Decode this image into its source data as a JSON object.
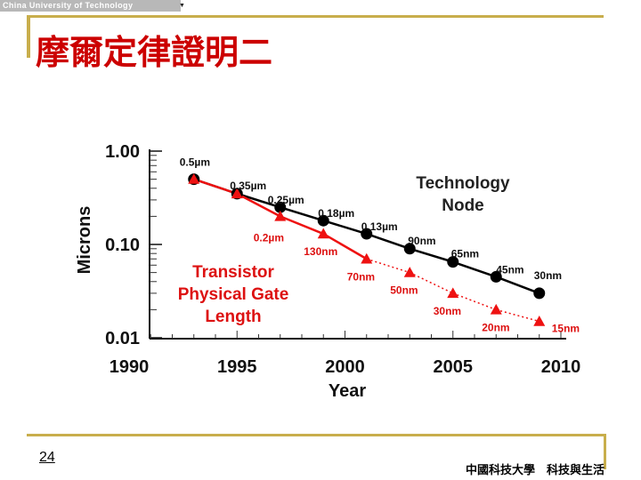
{
  "header": {
    "university": "China University of Technology",
    "title": "摩爾定律證明二"
  },
  "footer": {
    "page_number": "24",
    "org": "中國科技大學　科技與生活"
  },
  "colors": {
    "title": "#cc0000",
    "accent_gold": "#c8ae4c",
    "technology_node": "#000000",
    "gate_length": "#ee1111"
  },
  "chart_data": {
    "type": "line",
    "ylabel": "Microns",
    "xlabel": "Year",
    "yscale": "log",
    "ylim": [
      0.01,
      1.0
    ],
    "xlim": [
      1990,
      2010
    ],
    "x_ticks": [
      "1990",
      "1995",
      "2000",
      "2005",
      "2010"
    ],
    "y_ticks": [
      "1.00",
      "0.10",
      "0.01"
    ],
    "series": [
      {
        "name": "Technology Node",
        "legend": [
          "Technology",
          "Node"
        ],
        "marker": "circle",
        "x": [
          1993,
          1995,
          1997,
          1999,
          2001,
          2003,
          2005,
          2007,
          2009
        ],
        "values": [
          0.5,
          0.35,
          0.25,
          0.18,
          0.13,
          0.09,
          0.065,
          0.045,
          0.03
        ],
        "labels": [
          "0.5µm",
          "0.35µm",
          "0.25µm",
          "0.18µm",
          "0.13µm",
          "90nm",
          "65nm",
          "45nm",
          "30nm"
        ]
      },
      {
        "name": "Transistor Physical Gate Length",
        "legend": [
          "Transistor",
          "Physical Gate",
          "Length"
        ],
        "marker": "triangle",
        "x": [
          1993,
          1995,
          1997,
          1999,
          2001,
          2003,
          2005,
          2007,
          2009
        ],
        "values": [
          0.5,
          0.35,
          0.2,
          0.13,
          0.07,
          0.05,
          0.03,
          0.02,
          0.015
        ],
        "labels": [
          "",
          "",
          "0.2µm",
          "130nm",
          "70nm",
          "50nm",
          "30nm",
          "20nm",
          "15nm"
        ]
      }
    ]
  }
}
